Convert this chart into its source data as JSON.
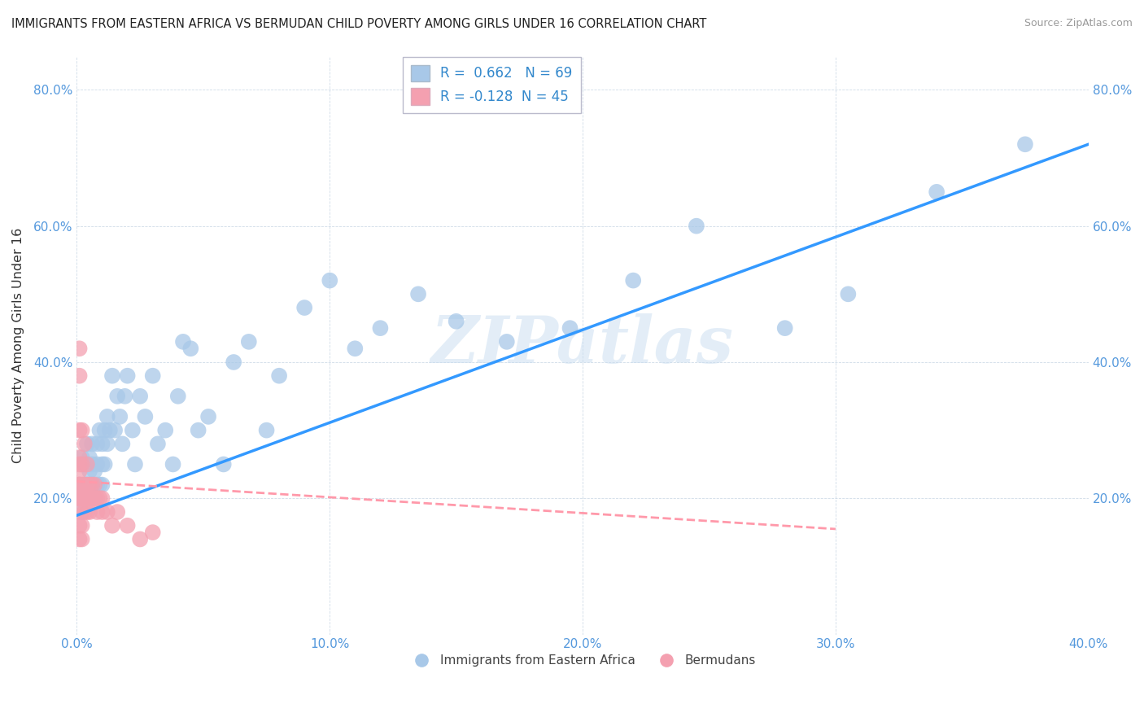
{
  "title": "IMMIGRANTS FROM EASTERN AFRICA VS BERMUDAN CHILD POVERTY AMONG GIRLS UNDER 16 CORRELATION CHART",
  "source": "Source: ZipAtlas.com",
  "ylabel": "Child Poverty Among Girls Under 16",
  "xlim": [
    0,
    0.4
  ],
  "ylim": [
    0,
    0.85
  ],
  "xticks": [
    0.0,
    0.1,
    0.2,
    0.3,
    0.4
  ],
  "xtick_labels": [
    "0.0%",
    "10.0%",
    "20.0%",
    "30.0%",
    "40.0%"
  ],
  "yticks": [
    0.0,
    0.2,
    0.4,
    0.6,
    0.8
  ],
  "ytick_labels": [
    "",
    "20.0%",
    "40.0%",
    "60.0%",
    "80.0%"
  ],
  "blue_R": 0.662,
  "blue_N": 69,
  "pink_R": -0.128,
  "pink_N": 45,
  "blue_color": "#A8C8E8",
  "pink_color": "#F4A0B0",
  "blue_line_color": "#3399FF",
  "pink_line_color": "#FF99AA",
  "watermark": "ZIPatlas",
  "legend_labels": [
    "Immigrants from Eastern Africa",
    "Bermudans"
  ],
  "blue_scatter_x": [
    0.001,
    0.001,
    0.002,
    0.002,
    0.003,
    0.003,
    0.003,
    0.004,
    0.004,
    0.005,
    0.005,
    0.005,
    0.006,
    0.006,
    0.006,
    0.007,
    0.007,
    0.008,
    0.008,
    0.008,
    0.009,
    0.009,
    0.01,
    0.01,
    0.01,
    0.011,
    0.011,
    0.012,
    0.012,
    0.013,
    0.014,
    0.015,
    0.016,
    0.017,
    0.018,
    0.019,
    0.02,
    0.022,
    0.023,
    0.025,
    0.027,
    0.03,
    0.032,
    0.035,
    0.038,
    0.04,
    0.042,
    0.045,
    0.048,
    0.052,
    0.058,
    0.062,
    0.068,
    0.075,
    0.08,
    0.09,
    0.1,
    0.11,
    0.12,
    0.135,
    0.15,
    0.17,
    0.195,
    0.22,
    0.245,
    0.28,
    0.305,
    0.34,
    0.375
  ],
  "blue_scatter_y": [
    0.2,
    0.22,
    0.18,
    0.26,
    0.22,
    0.25,
    0.2,
    0.28,
    0.22,
    0.24,
    0.2,
    0.26,
    0.22,
    0.25,
    0.28,
    0.2,
    0.24,
    0.22,
    0.28,
    0.25,
    0.3,
    0.22,
    0.25,
    0.28,
    0.22,
    0.3,
    0.25,
    0.28,
    0.32,
    0.3,
    0.38,
    0.3,
    0.35,
    0.32,
    0.28,
    0.35,
    0.38,
    0.3,
    0.25,
    0.35,
    0.32,
    0.38,
    0.28,
    0.3,
    0.25,
    0.35,
    0.43,
    0.42,
    0.3,
    0.32,
    0.25,
    0.4,
    0.43,
    0.3,
    0.38,
    0.48,
    0.52,
    0.42,
    0.45,
    0.5,
    0.46,
    0.43,
    0.45,
    0.52,
    0.6,
    0.45,
    0.5,
    0.65,
    0.72
  ],
  "pink_scatter_x": [
    0.001,
    0.001,
    0.001,
    0.001,
    0.001,
    0.001,
    0.001,
    0.001,
    0.001,
    0.001,
    0.001,
    0.001,
    0.001,
    0.002,
    0.002,
    0.002,
    0.002,
    0.002,
    0.002,
    0.003,
    0.003,
    0.003,
    0.003,
    0.004,
    0.004,
    0.004,
    0.004,
    0.005,
    0.005,
    0.005,
    0.006,
    0.006,
    0.007,
    0.007,
    0.008,
    0.008,
    0.009,
    0.01,
    0.01,
    0.012,
    0.014,
    0.016,
    0.02,
    0.025,
    0.03
  ],
  "pink_scatter_y": [
    0.42,
    0.38,
    0.3,
    0.25,
    0.22,
    0.2,
    0.18,
    0.16,
    0.14,
    0.22,
    0.26,
    0.2,
    0.24,
    0.3,
    0.25,
    0.22,
    0.2,
    0.16,
    0.14,
    0.28,
    0.22,
    0.2,
    0.18,
    0.25,
    0.22,
    0.2,
    0.18,
    0.22,
    0.2,
    0.18,
    0.22,
    0.2,
    0.22,
    0.2,
    0.2,
    0.18,
    0.2,
    0.2,
    0.18,
    0.18,
    0.16,
    0.18,
    0.16,
    0.14,
    0.15
  ],
  "blue_line_x0": 0.0,
  "blue_line_y0": 0.175,
  "blue_line_x1": 0.4,
  "blue_line_y1": 0.72,
  "pink_line_x0": 0.0,
  "pink_line_y0": 0.225,
  "pink_line_x1": 0.3,
  "pink_line_y1": 0.155
}
